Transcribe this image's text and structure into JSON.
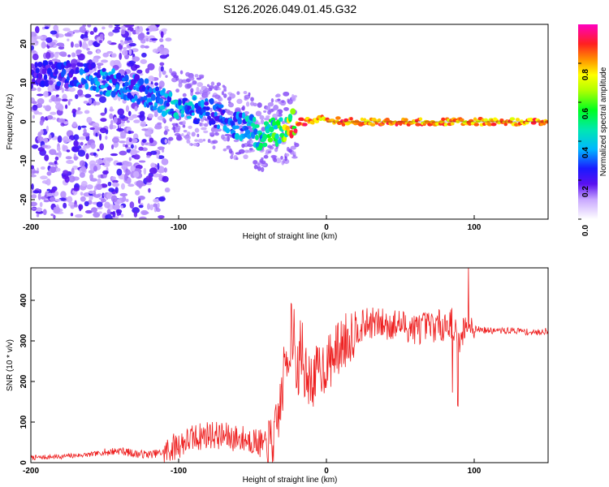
{
  "title": "S126.2026.049.01.45.G32",
  "colors": {
    "snr_line": "#ee2020",
    "axis": "#000000"
  },
  "chart_data": [
    {
      "type": "heatmap",
      "xlabel": "Height of straight line (km)",
      "ylabel": "Frequency (Hz)",
      "xlim": [
        -200,
        150
      ],
      "ylim": [
        -25,
        25
      ],
      "xticks": [
        -200,
        -100,
        0,
        100
      ],
      "xtick_labels": [
        "-200",
        "-100",
        "0",
        "100"
      ],
      "yticks": [
        -20,
        -10,
        0,
        10,
        20
      ],
      "ytick_labels": [
        "-20",
        "-10",
        "0",
        "10",
        "20"
      ],
      "colorbar": {
        "label": "Normalized spectral amplitude",
        "range": [
          0,
          1
        ],
        "ticks": [
          0,
          0.2,
          0.4,
          0.6,
          0.8
        ],
        "tick_labels": [
          "0.0",
          "0.2",
          "0.4",
          "0.6",
          "0.8"
        ]
      },
      "ridge": {
        "description_x_km": [
          -200,
          -180,
          -160,
          -150,
          -140,
          -120,
          -110,
          -100,
          -90,
          -80,
          -70,
          -60,
          -50,
          -45,
          -40,
          -30,
          -20,
          -10,
          0,
          10,
          50,
          100,
          150
        ],
        "frequency_hz": [
          12,
          12,
          12,
          10,
          10,
          7,
          5,
          4,
          3,
          3,
          1,
          -1,
          -2,
          -4,
          -3,
          -2,
          0,
          0,
          1,
          0,
          0,
          0,
          0
        ],
        "amplitude": [
          0.2,
          0.25,
          0.3,
          0.35,
          0.3,
          0.3,
          0.35,
          0.4,
          0.35,
          0.3,
          0.3,
          0.35,
          0.4,
          0.45,
          0.5,
          0.55,
          0.9,
          0.9,
          0.85,
          0.9,
          0.9,
          0.85,
          0.9
        ]
      }
    },
    {
      "type": "line",
      "xlabel": "Height of straight line (km)",
      "ylabel": "SNR (10 * v/v)",
      "xlim": [
        -200,
        150
      ],
      "ylim": [
        0,
        480
      ],
      "xticks": [
        -200,
        -100,
        0,
        100
      ],
      "xtick_labels": [
        "-200",
        "-100",
        "0",
        "100"
      ],
      "yticks": [
        0,
        100,
        200,
        300,
        400
      ],
      "ytick_labels": [
        "0",
        "100",
        "200",
        "300",
        "400"
      ],
      "series": [
        {
          "name": "SNR",
          "x": [
            -200,
            -180,
            -160,
            -150,
            -140,
            -130,
            -120,
            -110,
            -100,
            -90,
            -80,
            -70,
            -60,
            -50,
            -40,
            -35,
            -30,
            -28,
            -25,
            -22,
            -20,
            -15,
            -10,
            -5,
            0,
            10,
            20,
            30,
            40,
            50,
            60,
            70,
            80,
            85,
            90,
            95,
            100,
            110,
            120,
            130,
            140,
            150
          ],
          "values": [
            12,
            15,
            20,
            25,
            30,
            22,
            20,
            25,
            45,
            60,
            70,
            65,
            60,
            55,
            40,
            60,
            170,
            250,
            280,
            260,
            240,
            220,
            200,
            230,
            240,
            290,
            330,
            345,
            340,
            340,
            330,
            335,
            340,
            345,
            300,
            350,
            330,
            325,
            325,
            325,
            320,
            325
          ]
        }
      ]
    }
  ]
}
